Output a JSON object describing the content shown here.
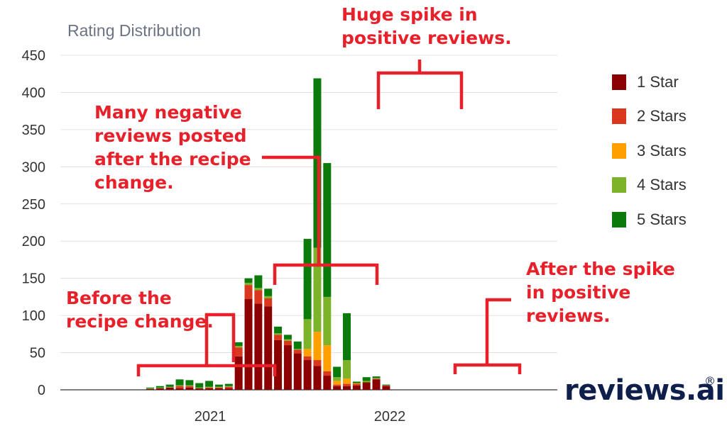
{
  "chart_data": {
    "type": "bar",
    "stacked": true,
    "title": "Rating Distribution",
    "xlabel": "",
    "ylabel": "",
    "ylim": [
      0,
      450
    ],
    "yticks": [
      0,
      50,
      100,
      150,
      200,
      250,
      300,
      350,
      400,
      450
    ],
    "x_tick_labels": [
      "2021",
      "2022"
    ],
    "grid": true,
    "legend_position": "right",
    "series": [
      {
        "name": "1 Star",
        "color": "#8b0000",
        "values": [
          1,
          2,
          3,
          2,
          3,
          2,
          2,
          2,
          2,
          45,
          122,
          116,
          112,
          67,
          60,
          49,
          40,
          32,
          19,
          5,
          5,
          6,
          10,
          14,
          5
        ]
      },
      {
        "name": "2 Stars",
        "color": "#d9381e",
        "values": [
          0,
          0,
          0,
          3,
          2,
          0,
          1,
          1,
          2,
          12,
          19,
          18,
          11,
          7,
          6,
          5,
          5,
          8,
          6,
          2,
          3,
          2,
          0,
          1,
          1
        ]
      },
      {
        "name": "3 Stars",
        "color": "#ffa000",
        "values": [
          0,
          0,
          0,
          0,
          0,
          0,
          0,
          0,
          0,
          0,
          0,
          0,
          0,
          0,
          0,
          0,
          10,
          38,
          35,
          5,
          7,
          1,
          0,
          0,
          0
        ]
      },
      {
        "name": "4 Stars",
        "color": "#7cb32b",
        "values": [
          1,
          1,
          1,
          1,
          1,
          1,
          1,
          1,
          1,
          2,
          3,
          3,
          3,
          2,
          2,
          1,
          40,
          113,
          65,
          5,
          25,
          0,
          2,
          1,
          0
        ]
      },
      {
        "name": "5 Stars",
        "color": "#0a7a0a",
        "values": [
          1,
          2,
          3,
          8,
          7,
          6,
          8,
          3,
          3,
          5,
          6,
          17,
          10,
          9,
          6,
          10,
          108,
          228,
          180,
          14,
          63,
          2,
          5,
          2,
          1
        ]
      }
    ]
  },
  "annotations": {
    "before": [
      "Before the",
      "recipe change."
    ],
    "negative": [
      "Many negative",
      "reviews posted",
      "after the recipe",
      "change."
    ],
    "spike": [
      "Huge spike in",
      "positive reviews."
    ],
    "after": [
      "After the spike",
      "in positive",
      "reviews."
    ]
  },
  "brand": {
    "name": "reviews.ai",
    "reg": "®"
  },
  "colors": {
    "annotation": "#e8202a",
    "grid": "#e0e0e0",
    "axis": "#333333"
  }
}
